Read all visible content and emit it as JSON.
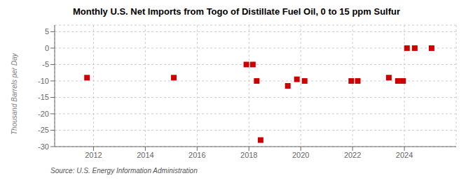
{
  "chart_data": {
    "type": "scatter",
    "title": "Monthly U.S. Net Imports from Togo of Distillate Fuel Oil, 0 to 15 ppm Sulfur",
    "y_label": "Thousand Barrels per Day",
    "annotations": [
      "Source: U.S. Energy Information Administration"
    ],
    "x": [
      2011.75,
      2015.1,
      2017.9,
      2018.15,
      2018.3,
      2018.45,
      2019.5,
      2019.85,
      2020.15,
      2021.95,
      2022.2,
      2023.4,
      2023.75,
      2023.95,
      2024.1,
      2024.4,
      2025.05
    ],
    "values": [
      -9.0,
      -9.0,
      -5.0,
      -5.0,
      -10.0,
      -28.0,
      -11.5,
      -9.5,
      -10.0,
      -10.0,
      -10.0,
      -9.0,
      -10.0,
      -10.0,
      0.0,
      0.0,
      0.0
    ],
    "color": "#cc0000",
    "marker": "square",
    "xlim": [
      2010.5,
      2026.0
    ],
    "xticks": [
      2012,
      2014,
      2016,
      2018,
      2020,
      2022,
      2024
    ],
    "ylim": [
      -30,
      7
    ],
    "yticks": [
      5,
      0,
      -5,
      -10,
      -15,
      -20,
      -25,
      -30
    ],
    "grid": true
  }
}
